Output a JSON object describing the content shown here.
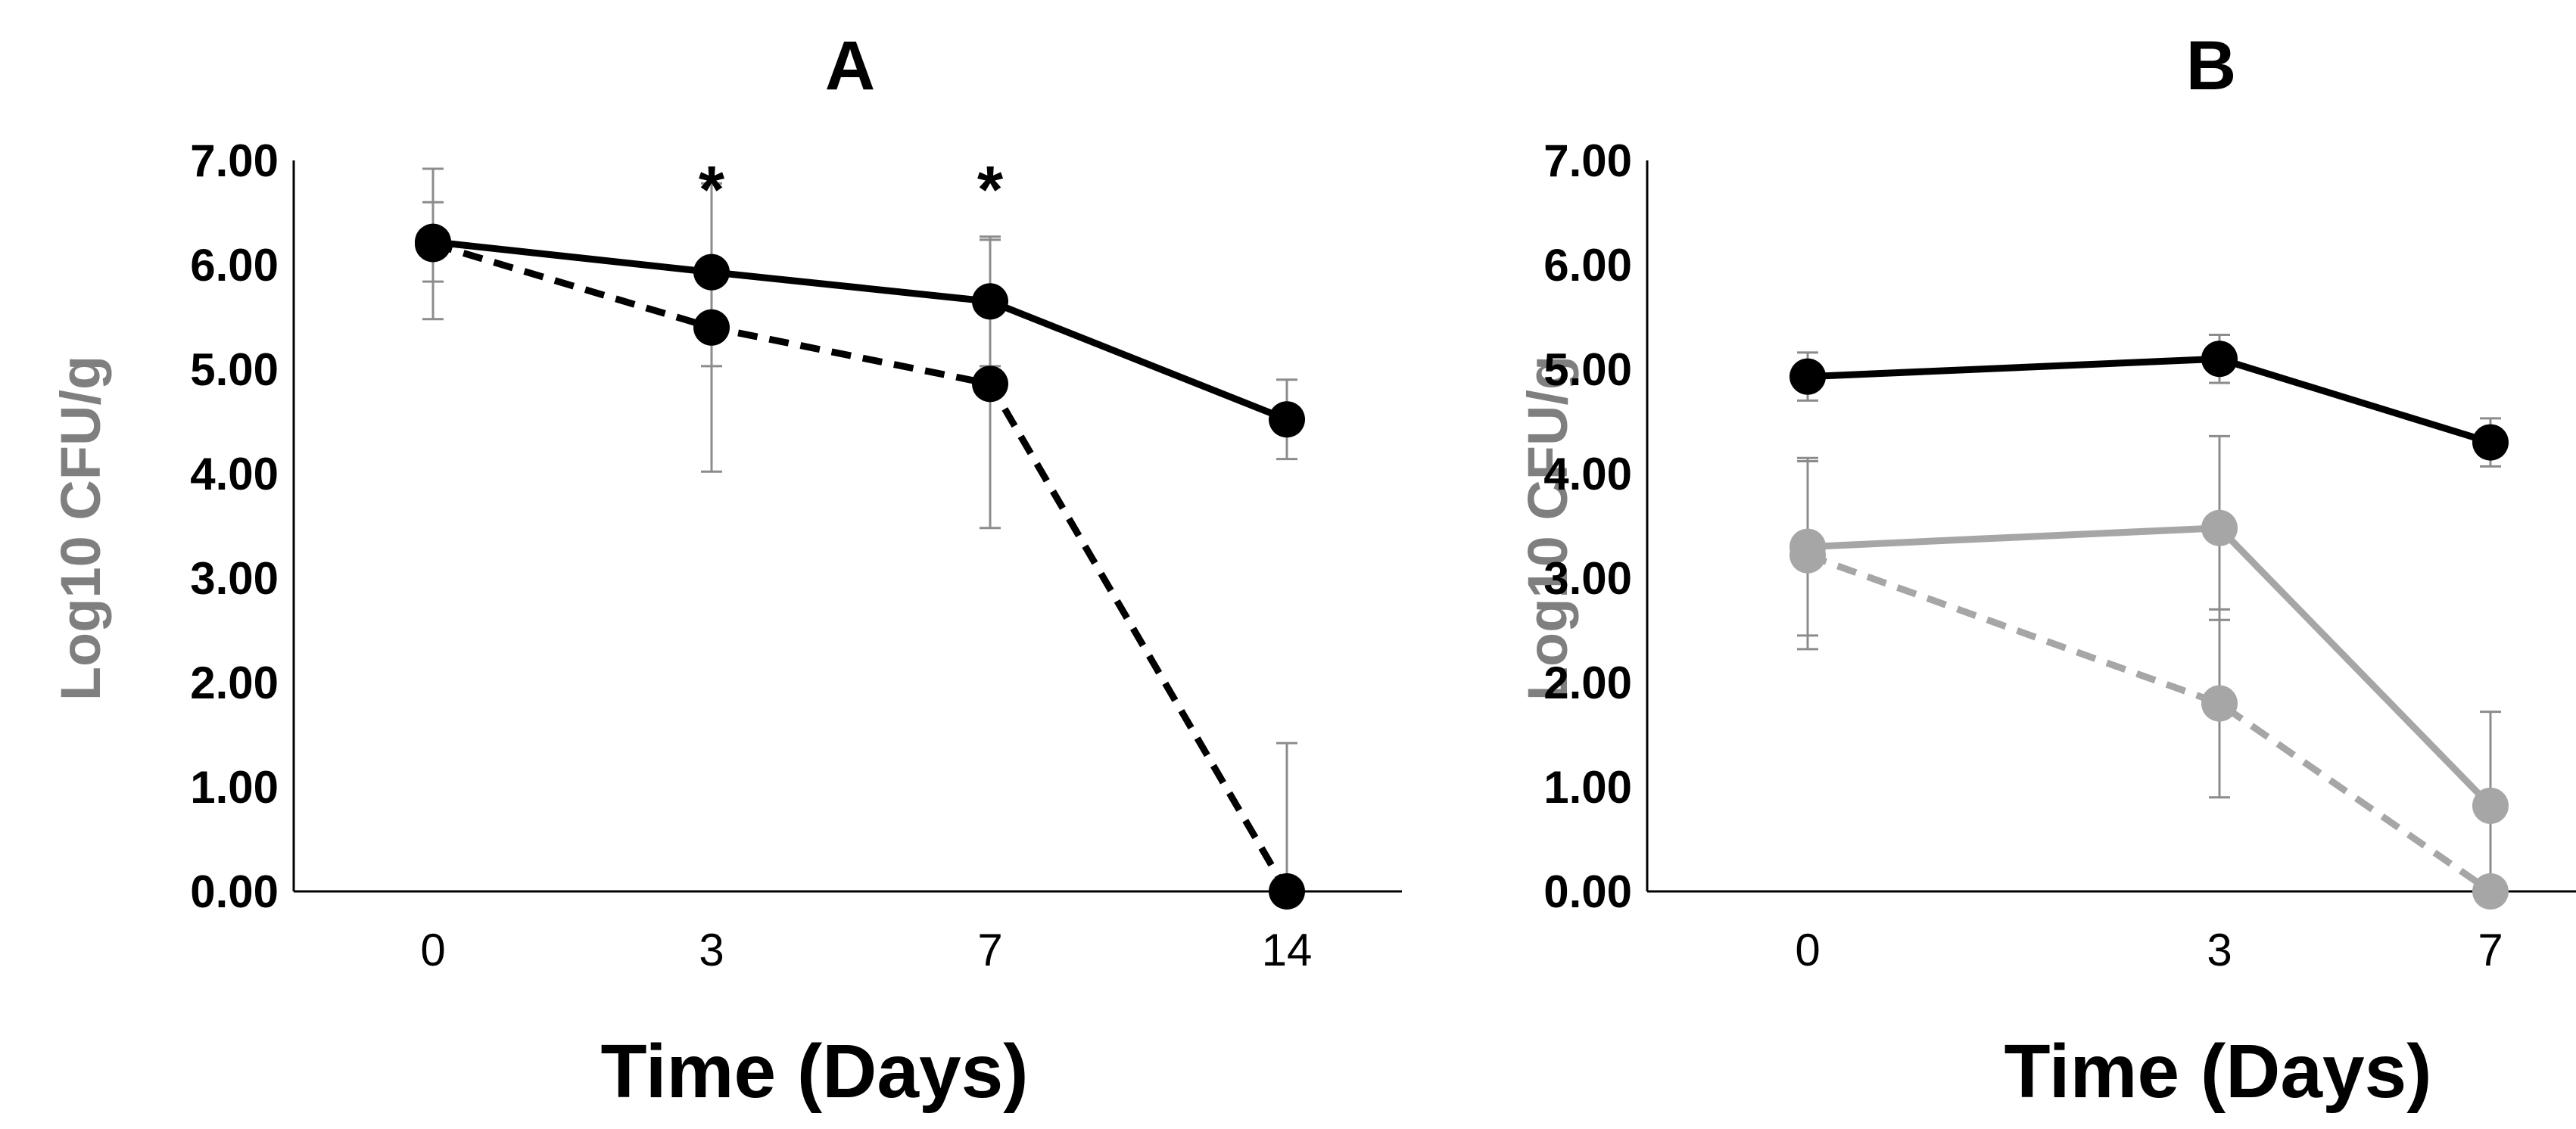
{
  "colors": {
    "black": "#000000",
    "gray": "#a6a6a6",
    "errorbar": "#8c8c8c",
    "axis": "#000000",
    "ylabel": "#7f7f7f"
  },
  "chart_data": [
    {
      "type": "line",
      "title": "A",
      "xlabel": "Time (Days)",
      "ylabel": "Log10 CFU/g",
      "ylim": [
        0,
        7
      ],
      "ytick_labels": [
        "0.00",
        "1.00",
        "2.00",
        "3.00",
        "4.00",
        "5.00",
        "6.00",
        "7.00"
      ],
      "categories": [
        "0",
        "3",
        "7",
        "14"
      ],
      "grid": false,
      "series": [
        {
          "name": "solid black",
          "color": "#000000",
          "style": "solid",
          "values": [
            6.22,
            5.93,
            5.65,
            4.52
          ],
          "errors": [
            0.38,
            0.9,
            0.62,
            0.38
          ]
        },
        {
          "name": "dashed black",
          "color": "#000000",
          "style": "dashed",
          "values": [
            6.2,
            5.4,
            4.86,
            0.0
          ],
          "errors": [
            0.72,
            1.38,
            1.38,
            1.42
          ]
        }
      ],
      "annotations": [
        {
          "category": "3",
          "text": "*",
          "y": 6.85
        },
        {
          "category": "7",
          "text": "*",
          "y": 6.85
        }
      ]
    },
    {
      "type": "line",
      "title": "B",
      "xlabel": "Time (Days)",
      "ylabel": "Log10 CFU/g",
      "ylim": [
        0,
        7
      ],
      "ytick_labels": [
        "0.00",
        "1.00",
        "2.00",
        "3.00",
        "4.00",
        "5.00",
        "6.00",
        "7.00"
      ],
      "categories": [
        "0",
        "3",
        "7"
      ],
      "grid": false,
      "series": [
        {
          "name": "solid black",
          "color": "#000000",
          "style": "solid",
          "values": [
            4.93,
            5.1,
            4.3
          ],
          "errors": [
            0.23,
            0.23,
            0.23
          ]
        },
        {
          "name": "solid gray",
          "color": "#a6a6a6",
          "style": "solid",
          "values": [
            3.3,
            3.48,
            0.82
          ],
          "errors": [
            0.85,
            0.88,
            0.9
          ]
        },
        {
          "name": "dashed gray",
          "color": "#a6a6a6",
          "style": "dashed",
          "values": [
            3.22,
            1.8,
            0.0
          ],
          "errors": [
            0.9,
            0.9,
            0.0
          ]
        }
      ],
      "annotations": []
    }
  ]
}
